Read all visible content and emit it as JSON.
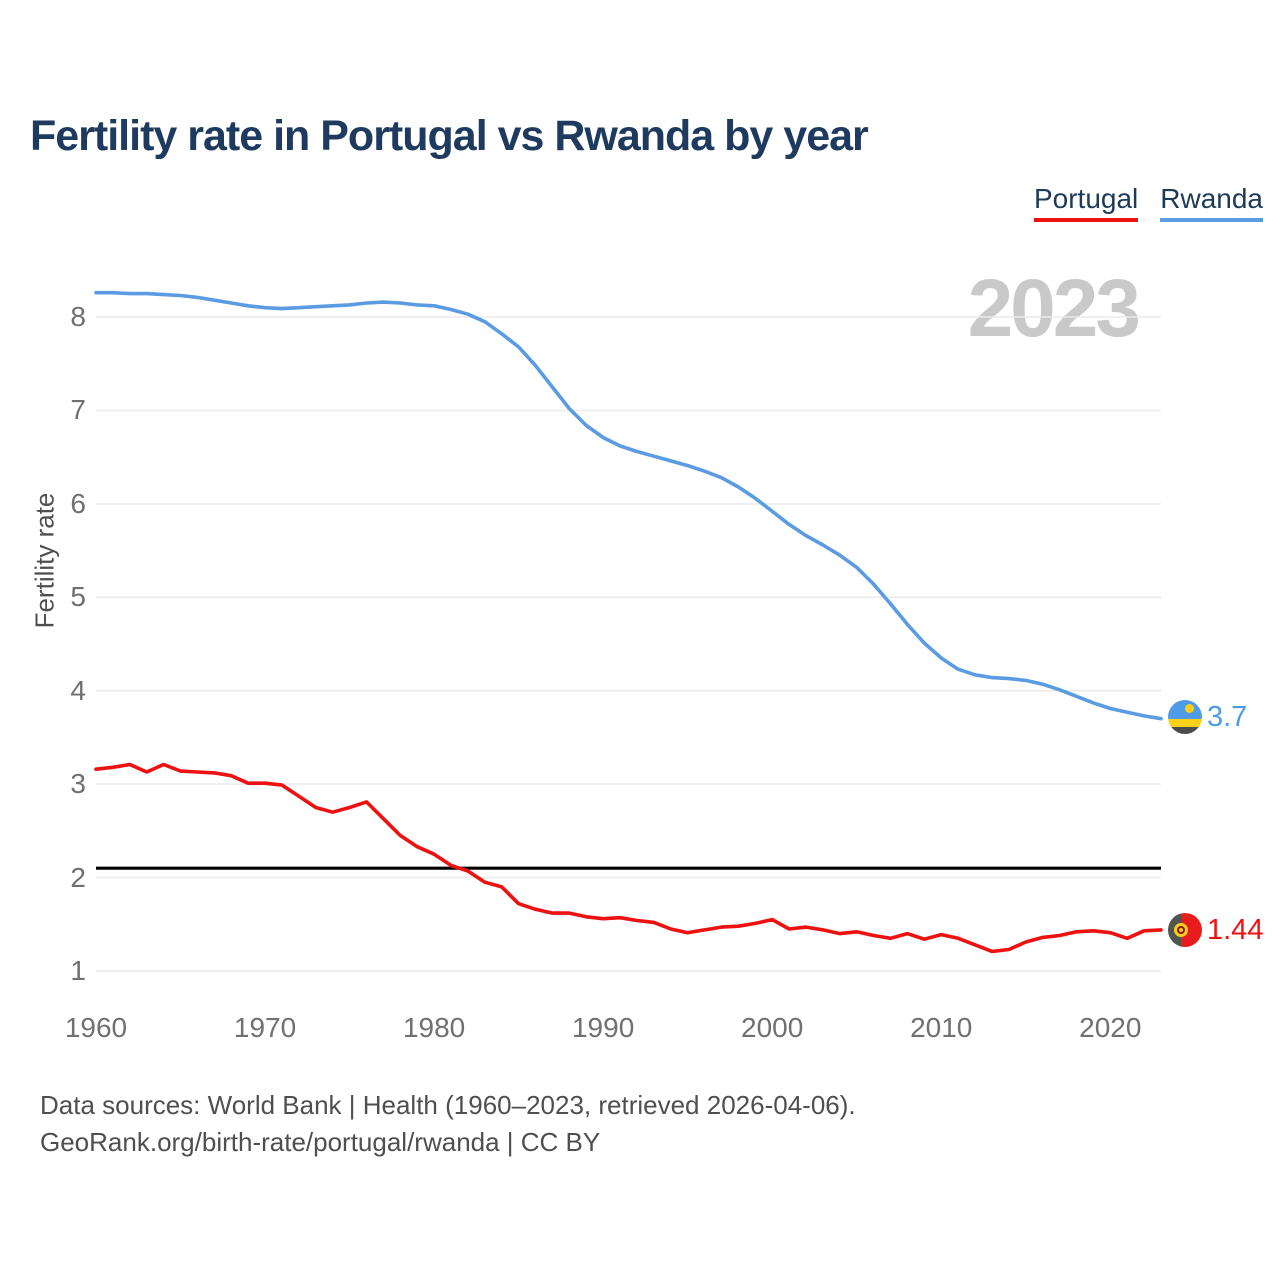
{
  "header": {
    "title": "Fertility rate in Portugal vs Rwanda by year"
  },
  "legend": [
    {
      "label": "Portugal",
      "color": "#ee1111"
    },
    {
      "label": "Rwanda",
      "color": "#5b9be1"
    }
  ],
  "watermark": "2023",
  "y_axis": {
    "title": "Fertility rate",
    "ticks": [
      1,
      2,
      3,
      4,
      5,
      6,
      7,
      8
    ]
  },
  "x_axis": {
    "ticks": [
      1960,
      1970,
      1980,
      1990,
      2000,
      2010,
      2020
    ]
  },
  "end_labels": [
    {
      "series": "Rwanda",
      "value": "3.7",
      "color": "#4a9ce8"
    },
    {
      "series": "Portugal",
      "value": "1.44",
      "color": "#ee1111"
    }
  ],
  "footer": {
    "line1": "Data sources: World Bank | Health (1960–2023, retrieved 2026-04-06).",
    "line2": "GeoRank.org/birth-rate/portugal/rwanda | CC BY"
  },
  "chart_data": {
    "type": "line",
    "title": "Fertility rate in Portugal vs Rwanda by year",
    "xlabel": "",
    "ylabel": "Fertility rate",
    "xlim": [
      1960,
      2023
    ],
    "ylim": [
      1,
      8.5
    ],
    "grid": "horizontal",
    "legend_position": "top-right",
    "watermark_year": "2023",
    "reference_line": {
      "value": 2.1,
      "color": "#000000"
    },
    "years": [
      1960,
      1961,
      1962,
      1963,
      1964,
      1965,
      1966,
      1967,
      1968,
      1969,
      1970,
      1971,
      1972,
      1973,
      1974,
      1975,
      1976,
      1977,
      1978,
      1979,
      1980,
      1981,
      1982,
      1983,
      1984,
      1985,
      1986,
      1987,
      1988,
      1989,
      1990,
      1991,
      1992,
      1993,
      1994,
      1995,
      1996,
      1997,
      1998,
      1999,
      2000,
      2001,
      2002,
      2003,
      2004,
      2005,
      2006,
      2007,
      2008,
      2009,
      2010,
      2011,
      2012,
      2013,
      2014,
      2015,
      2016,
      2017,
      2018,
      2019,
      2020,
      2021,
      2022,
      2023
    ],
    "series": [
      {
        "name": "Portugal",
        "color": "#ee1111",
        "end_label": "1.44",
        "values": [
          3.16,
          3.18,
          3.21,
          3.13,
          3.21,
          3.14,
          3.13,
          3.12,
          3.09,
          3.01,
          3.01,
          2.99,
          2.87,
          2.75,
          2.7,
          2.75,
          2.81,
          2.63,
          2.45,
          2.33,
          2.25,
          2.13,
          2.07,
          1.95,
          1.9,
          1.72,
          1.66,
          1.62,
          1.62,
          1.58,
          1.56,
          1.57,
          1.54,
          1.52,
          1.45,
          1.41,
          1.44,
          1.47,
          1.48,
          1.51,
          1.55,
          1.45,
          1.47,
          1.44,
          1.4,
          1.42,
          1.38,
          1.35,
          1.4,
          1.34,
          1.39,
          1.35,
          1.28,
          1.21,
          1.23,
          1.31,
          1.36,
          1.38,
          1.42,
          1.43,
          1.41,
          1.35,
          1.43,
          1.44
        ]
      },
      {
        "name": "Rwanda",
        "color": "#5b9be1",
        "end_label": "3.7",
        "values": [
          8.26,
          8.26,
          8.25,
          8.25,
          8.24,
          8.23,
          8.21,
          8.18,
          8.15,
          8.12,
          8.1,
          8.09,
          8.1,
          8.11,
          8.12,
          8.13,
          8.15,
          8.16,
          8.15,
          8.13,
          8.12,
          8.08,
          8.03,
          7.95,
          7.82,
          7.68,
          7.48,
          7.25,
          7.02,
          6.84,
          6.71,
          6.62,
          6.56,
          6.51,
          6.46,
          6.41,
          6.35,
          6.28,
          6.18,
          6.06,
          5.92,
          5.78,
          5.66,
          5.56,
          5.45,
          5.32,
          5.14,
          4.93,
          4.71,
          4.51,
          4.35,
          4.23,
          4.17,
          4.14,
          4.13,
          4.11,
          4.07,
          4.01,
          3.94,
          3.87,
          3.81,
          3.77,
          3.73,
          3.7
        ]
      }
    ]
  }
}
